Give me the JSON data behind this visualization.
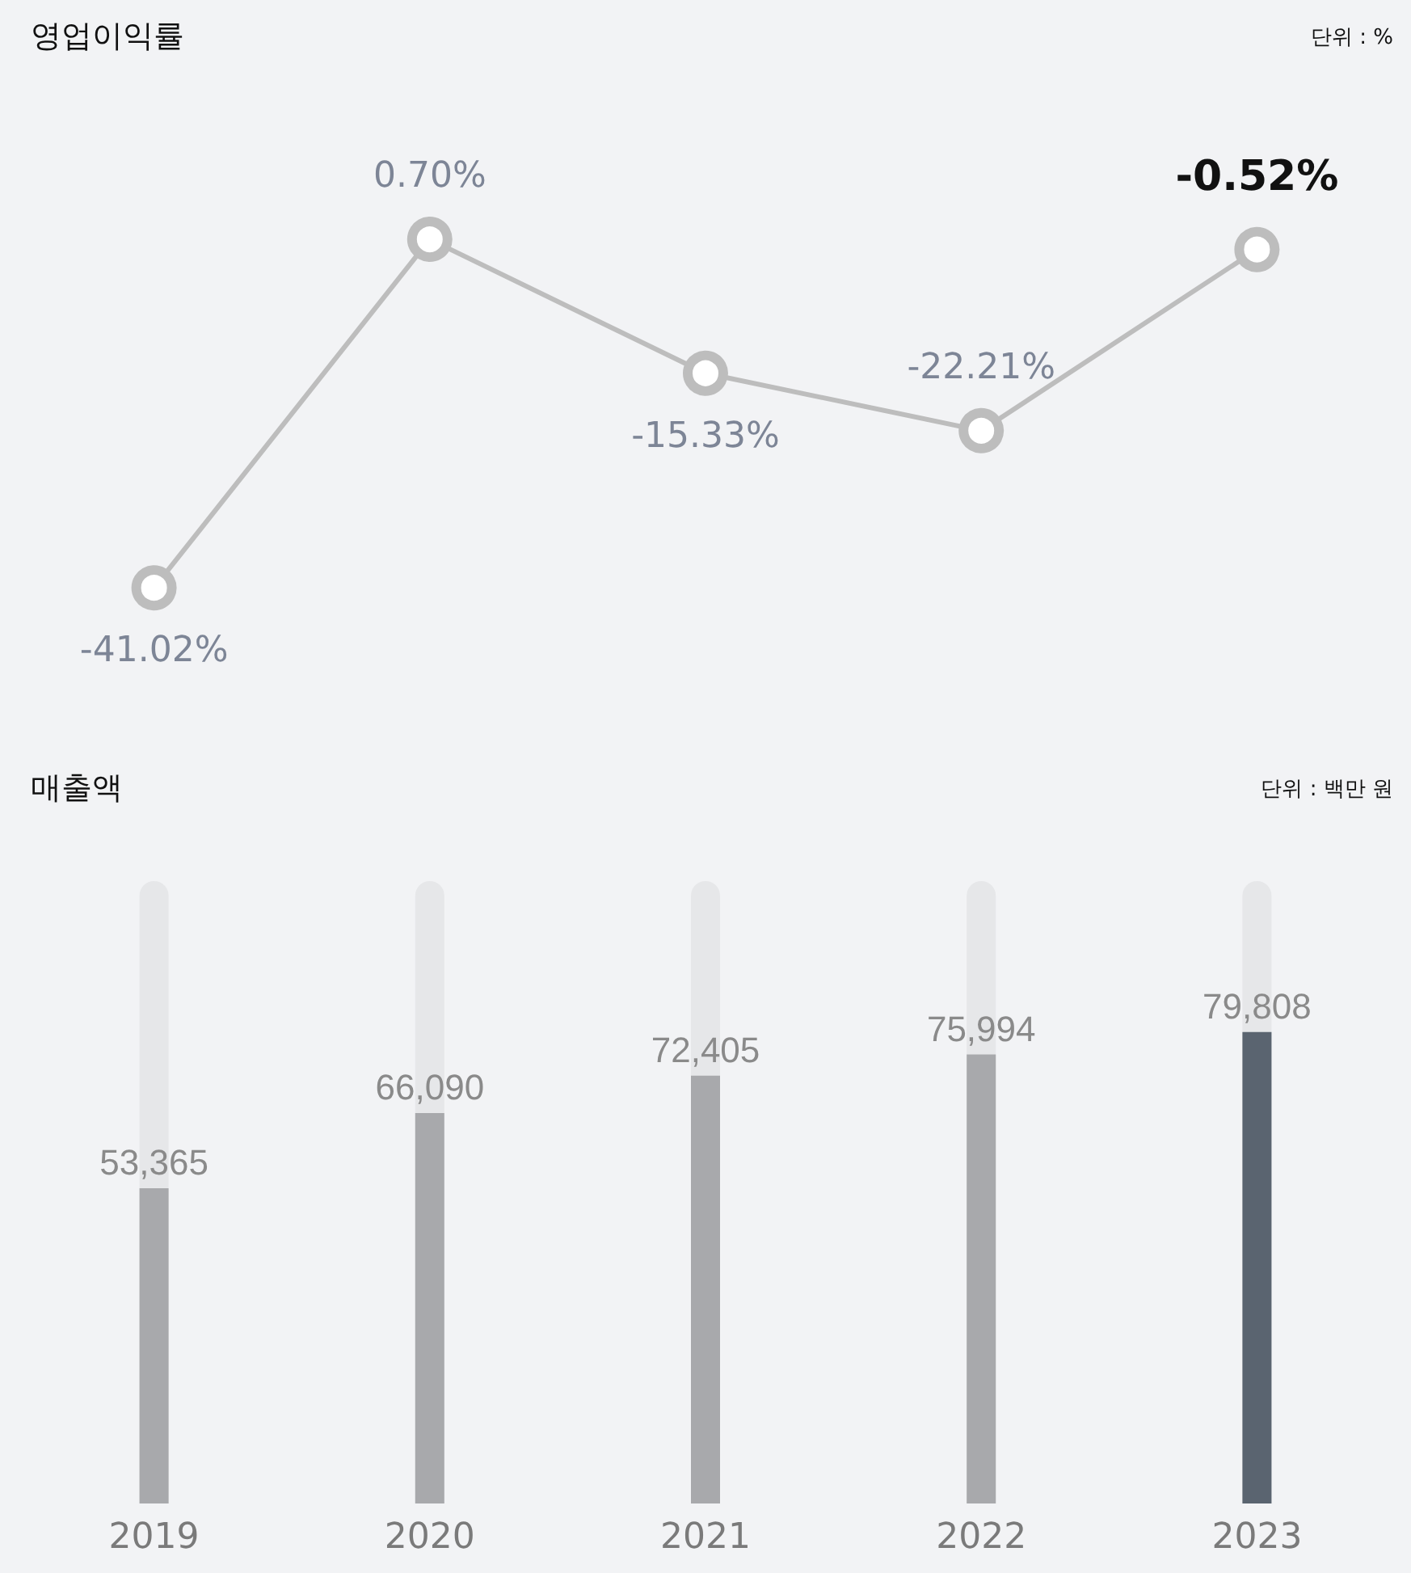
{
  "chart_data": [
    {
      "type": "line",
      "title": "영업이익률",
      "annotations": [
        "단위 : %"
      ],
      "categories": [
        "2019",
        "2020",
        "2021",
        "2022",
        "2023"
      ],
      "color": "#bdbdbd",
      "values": [
        -41.02,
        0.7,
        -15.33,
        -22.21,
        -0.52
      ],
      "value_labels": [
        "-41.02%",
        "0.70%",
        "-15.33%",
        "-22.21%",
        "-0.52%"
      ],
      "marker": "circle",
      "tick_labels": false,
      "grid": false
    },
    {
      "type": "bar",
      "title": "매출액",
      "annotations": [
        "단위 : 백만 원"
      ],
      "categories": [
        "2019",
        "2020",
        "2021",
        "2022",
        "2023"
      ],
      "values": [
        53365,
        66090,
        72405,
        75994,
        79808
      ],
      "colors": [
        "#a8a9ac",
        "#a8a9ac",
        "#a8a9ac",
        "#a8a9ac",
        "#5a6470"
      ],
      "value_labels": [
        "53,365",
        "66,090",
        "72,405",
        "75,994",
        "79,808"
      ],
      "tick_labels": "x",
      "grid": false
    }
  ]
}
